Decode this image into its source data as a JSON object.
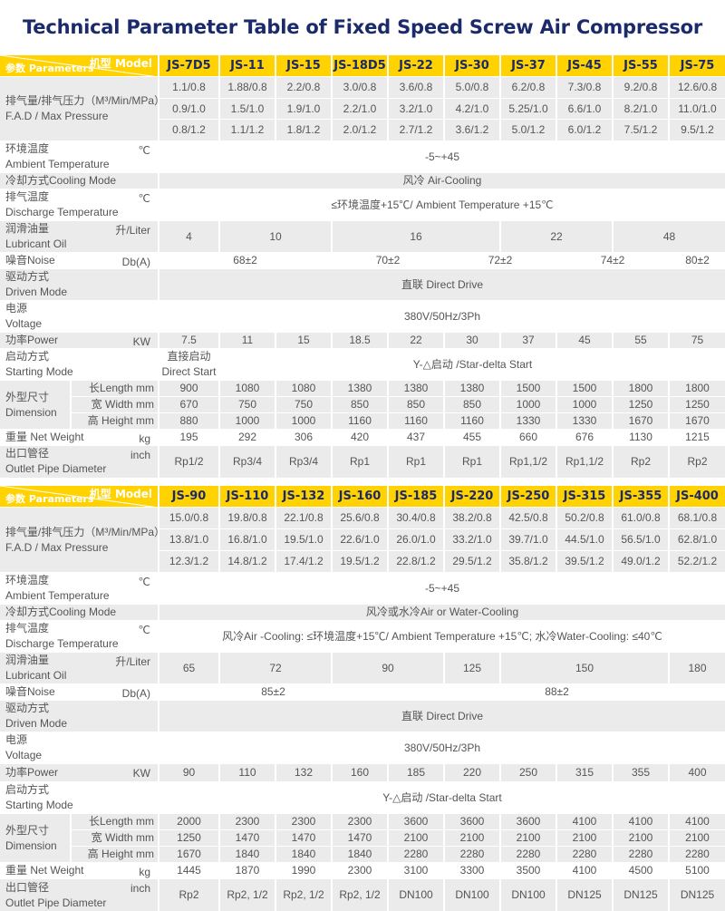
{
  "title": "Technical Parameter Table of  Fixed Speed Screw Air Compressor",
  "colors": {
    "header_bg": "#ffd200",
    "title": "#1b2a6b",
    "row_gray": "#ebebeb"
  },
  "labels": {
    "model": "机型 Model",
    "parameters": "参数 Parameters",
    "fad_cn": "排气量/排气压力（M³/Min/MPa）",
    "fad_en": "F.A.D / Max Pressure",
    "ambient_cn": "环境温度",
    "ambient_en": "Ambient Temperature",
    "ambient_unit": "℃",
    "cooling": "冷却方式Cooling Mode",
    "discharge_cn": "排气温度",
    "discharge_en": "Discharge Temperature",
    "discharge_unit": "℃",
    "lubricant_cn": "润滑油量",
    "lubricant_en": "Lubricant Oil",
    "lubricant_unit": "升/Liter",
    "noise": "噪音Noise",
    "noise_unit": "Db(A)",
    "drive_cn": "驱动方式",
    "drive_en": "Driven Mode",
    "voltage_cn": "电源",
    "voltage_en": "Voltage",
    "power": "功率Power",
    "power_unit": "KW",
    "starting_cn": "启动方式",
    "starting_en": "Starting Mode",
    "dimension_cn": "外型尺寸",
    "dimension_en": "Dimension",
    "length": "长Length mm",
    "width": "宽 Width  mm",
    "height": "高 Height mm",
    "weight": "重量 Net Weight",
    "weight_unit": "kg",
    "outlet_cn": "出口管径",
    "outlet_en": "Outlet Pipe Diameter",
    "outlet_unit": "inch"
  },
  "tables": [
    {
      "models": [
        "JS-7D5",
        "JS-11",
        "JS-15",
        "JS-18D5",
        "JS-22",
        "JS-30",
        "JS-37",
        "JS-45",
        "JS-55",
        "JS-75"
      ],
      "fad": [
        [
          "1.1/0.8",
          "1.88/0.8",
          "2.2/0.8",
          "3.0/0.8",
          "3.6/0.8",
          "5.0/0.8",
          "6.2/0.8",
          "7.3/0.8",
          "9.2/0.8",
          "12.6/0.8"
        ],
        [
          "0.9/1.0",
          "1.5/1.0",
          "1.9/1.0",
          "2.2/1.0",
          "3.2/1.0",
          "4.2/1.0",
          "5.25/1.0",
          "6.6/1.0",
          "8.2/1.0",
          "11.0/1.0"
        ],
        [
          "0.8/1.2",
          "1.1/1.2",
          "1.8/1.2",
          "2.0/1.2",
          "2.7/1.2",
          "3.6/1.2",
          "5.0/1.2",
          "6.0/1.2",
          "7.5/1.2",
          "9.5/1.2"
        ]
      ],
      "ambient": "-5~+45",
      "cooling": "风冷  Air-Cooling",
      "discharge": "≤环境温度+15℃/ Ambient Temperature  +15℃",
      "lubricant": [
        {
          "value": "4",
          "span": 1
        },
        {
          "value": "10",
          "span": 2
        },
        {
          "value": "16",
          "span": 3
        },
        {
          "value": "22",
          "span": 2
        },
        {
          "value": "48",
          "span": 2
        }
      ],
      "noise": [
        {
          "value": "68±2",
          "span": 3
        },
        {
          "value": "70±2",
          "span": 2
        },
        {
          "value": "72±2",
          "span": 2
        },
        {
          "value": "74±2",
          "span": 2
        },
        {
          "value": "80±2",
          "span": 1
        }
      ],
      "drive": "直联 Direct Drive",
      "voltage": "380V/50Hz/3Ph",
      "power": [
        "7.5",
        "11",
        "15",
        "18.5",
        "22",
        "30",
        "37",
        "45",
        "55",
        "75"
      ],
      "starting": [
        {
          "value": "直接启动\nDirect Start",
          "span": 1
        },
        {
          "value": "Y-△启动 /Star-delta Start",
          "span": 9
        }
      ],
      "length": [
        "900",
        "1080",
        "1080",
        "1380",
        "1380",
        "1380",
        "1500",
        "1500",
        "1800",
        "1800"
      ],
      "width": [
        "670",
        "750",
        "750",
        "850",
        "850",
        "850",
        "1000",
        "1000",
        "1250",
        "1250"
      ],
      "height": [
        "880",
        "1000",
        "1000",
        "1160",
        "1160",
        "1160",
        "1330",
        "1330",
        "1670",
        "1670"
      ],
      "weight": [
        "195",
        "292",
        "306",
        "420",
        "437",
        "455",
        "660",
        "676",
        "1130",
        "1215"
      ],
      "outlet": [
        "Rp1/2",
        "Rp3/4",
        "Rp3/4",
        "Rp1",
        "Rp1",
        "Rp1",
        "Rp1,1/2",
        "Rp1,1/2",
        "Rp2",
        "Rp2"
      ]
    },
    {
      "models": [
        "JS-90",
        "JS-110",
        "JS-132",
        "JS-160",
        "JS-185",
        "JS-220",
        "JS-250",
        "JS-315",
        "JS-355",
        "JS-400"
      ],
      "fad": [
        [
          "15.0/0.8",
          "19.8/0.8",
          "22.1/0.8",
          "25.6/0.8",
          "30.4/0.8",
          "38.2/0.8",
          "42.5/0.8",
          "50.2/0.8",
          "61.0/0.8",
          "68.1/0.8"
        ],
        [
          "13.8/1.0",
          "16.8/1.0",
          "19.5/1.0",
          "22.6/1.0",
          "26.0/1.0",
          "33.2/1.0",
          "39.7/1.0",
          "44.5/1.0",
          "56.5/1.0",
          "62.8/1.0"
        ],
        [
          "12.3/1.2",
          "14.8/1.2",
          "17.4/1.2",
          "19.5/1.2",
          "22.8/1.2",
          "29.5/1.2",
          "35.8/1.2",
          "39.5/1.2",
          "49.0/1.2",
          "52.2/1.2"
        ]
      ],
      "ambient": "-5~+45",
      "cooling": "风冷或水冷Air or Water-Cooling",
      "discharge": "风冷Air -Cooling: ≤环境温度+15℃/ Ambient Temperature  +15℃;  水冷Water-Cooling:  ≤40℃",
      "lubricant": [
        {
          "value": "65",
          "span": 1
        },
        {
          "value": "72",
          "span": 2
        },
        {
          "value": "90",
          "span": 2
        },
        {
          "value": "125",
          "span": 1
        },
        {
          "value": "150",
          "span": 3
        },
        {
          "value": "180",
          "span": 1
        }
      ],
      "noise": [
        {
          "value": "85±2",
          "span": 4
        },
        {
          "value": "88±2",
          "span": 6
        }
      ],
      "drive": "直联 Direct Drive",
      "voltage": "380V/50Hz/3Ph",
      "power": [
        "90",
        "110",
        "132",
        "160",
        "185",
        "220",
        "250",
        "315",
        "355",
        "400"
      ],
      "starting": [
        {
          "value": "Y-△启动 /Star-delta Start",
          "span": 10
        }
      ],
      "length": [
        "2000",
        "2300",
        "2300",
        "2300",
        "3600",
        "3600",
        "3600",
        "4100",
        "4100",
        "4100"
      ],
      "width": [
        "1250",
        "1470",
        "1470",
        "1470",
        "2100",
        "2100",
        "2100",
        "2100",
        "2100",
        "2100"
      ],
      "height": [
        "1670",
        "1840",
        "1840",
        "1840",
        "2280",
        "2280",
        "2280",
        "2280",
        "2280",
        "2280"
      ],
      "weight": [
        "1445",
        "1870",
        "1990",
        "2300",
        "3100",
        "3300",
        "3500",
        "4100",
        "4500",
        "5100"
      ],
      "outlet": [
        "Rp2",
        "Rp2,  1/2",
        "Rp2,  1/2",
        "Rp2,  1/2",
        "DN100",
        "DN100",
        "DN100",
        "DN125",
        "DN125",
        "DN125"
      ]
    }
  ]
}
